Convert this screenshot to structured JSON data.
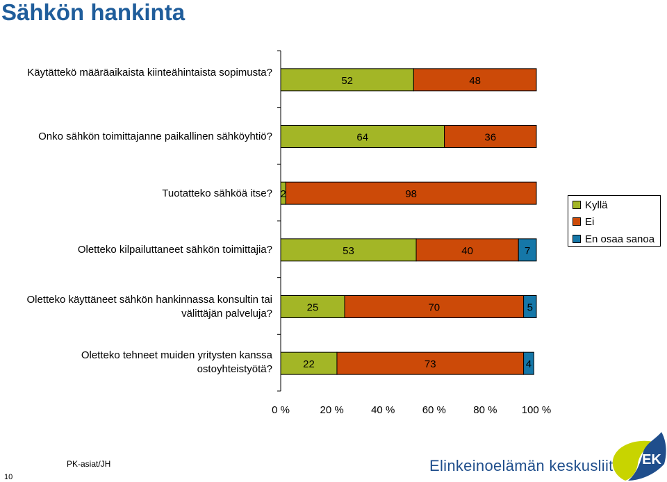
{
  "page": {
    "title": "Sähkön hankinta",
    "footer_note": "PK-asiat/JH",
    "page_number": "10",
    "organization": "Elinkeinoelämän keskusliitto",
    "logo_text": "EK"
  },
  "legend": {
    "items": [
      {
        "label": "Kyllä",
        "color": "#a3b626"
      },
      {
        "label": "Ei",
        "color": "#cc4a08"
      },
      {
        "label": "En osaa sanoa",
        "color": "#1577a8"
      }
    ]
  },
  "chart_data": {
    "type": "bar",
    "orientation": "horizontal",
    "stacked": "percent",
    "categories": [
      "Käytättekö määräaikaista kiinteähintaista sopimusta?",
      "Onko sähkön toimittajanne paikallinen sähköyhtiö?",
      "Tuotatteko sähköä itse?",
      "Oletteko kilpailuttaneet sähkön toimittajia?",
      "Oletteko käyttäneet sähkön hankinnassa konsultin tai välittäjän palveluja?",
      "Oletteko tehneet muiden yritysten kanssa ostoyhteistyötä?"
    ],
    "series": [
      {
        "name": "Kyllä",
        "values": [
          52,
          64,
          2,
          53,
          25,
          22
        ],
        "color": "#a3b626"
      },
      {
        "name": "Ei",
        "values": [
          48,
          36,
          98,
          40,
          70,
          73
        ],
        "color": "#cc4a08"
      },
      {
        "name": "En osaa sanoa",
        "values": [
          0,
          0,
          0,
          7,
          5,
          4
        ],
        "color": "#1577a8"
      }
    ],
    "x_ticks": [
      "0 %",
      "20 %",
      "40 %",
      "60 %",
      "80 %",
      "100 %"
    ],
    "xlim": [
      0,
      100
    ],
    "grid": false,
    "legend_position": "right"
  }
}
